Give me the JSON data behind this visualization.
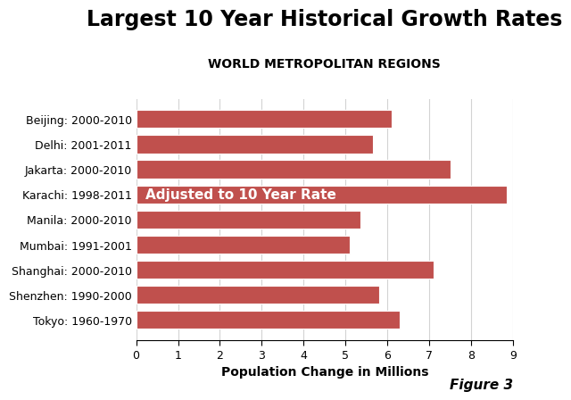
{
  "title": "Largest 10 Year Historical Growth Rates",
  "subtitle": "WORLD METROPOLITAN REGIONS",
  "xlabel": "Population Change in Millions",
  "figure_label": "Figure 3",
  "categories": [
    "Beijing: 2000-2010",
    "Delhi: 2001-2011",
    "Jakarta: 2000-2010",
    "Karachi: 1998-2011",
    "Manila: 2000-2010",
    "Mumbai: 1991-2001",
    "Shanghai: 2000-2010",
    "Shenzhen: 1990-2000",
    "Tokyo: 1960-1970"
  ],
  "values": [
    6.1,
    5.65,
    7.5,
    8.85,
    5.35,
    5.1,
    7.1,
    5.8,
    6.3
  ],
  "bar_color": "#c0504d",
  "annotation_text": "Adjusted to 10 Year Rate",
  "annotation_bar_index": 3,
  "xlim": [
    0,
    9
  ],
  "xticks": [
    0,
    1,
    2,
    3,
    4,
    5,
    6,
    7,
    8,
    9
  ],
  "background_color": "#ffffff",
  "title_fontsize": 17,
  "subtitle_fontsize": 10,
  "xlabel_fontsize": 10,
  "tick_fontsize": 9,
  "figure_label_fontsize": 11,
  "annotation_fontsize": 11
}
